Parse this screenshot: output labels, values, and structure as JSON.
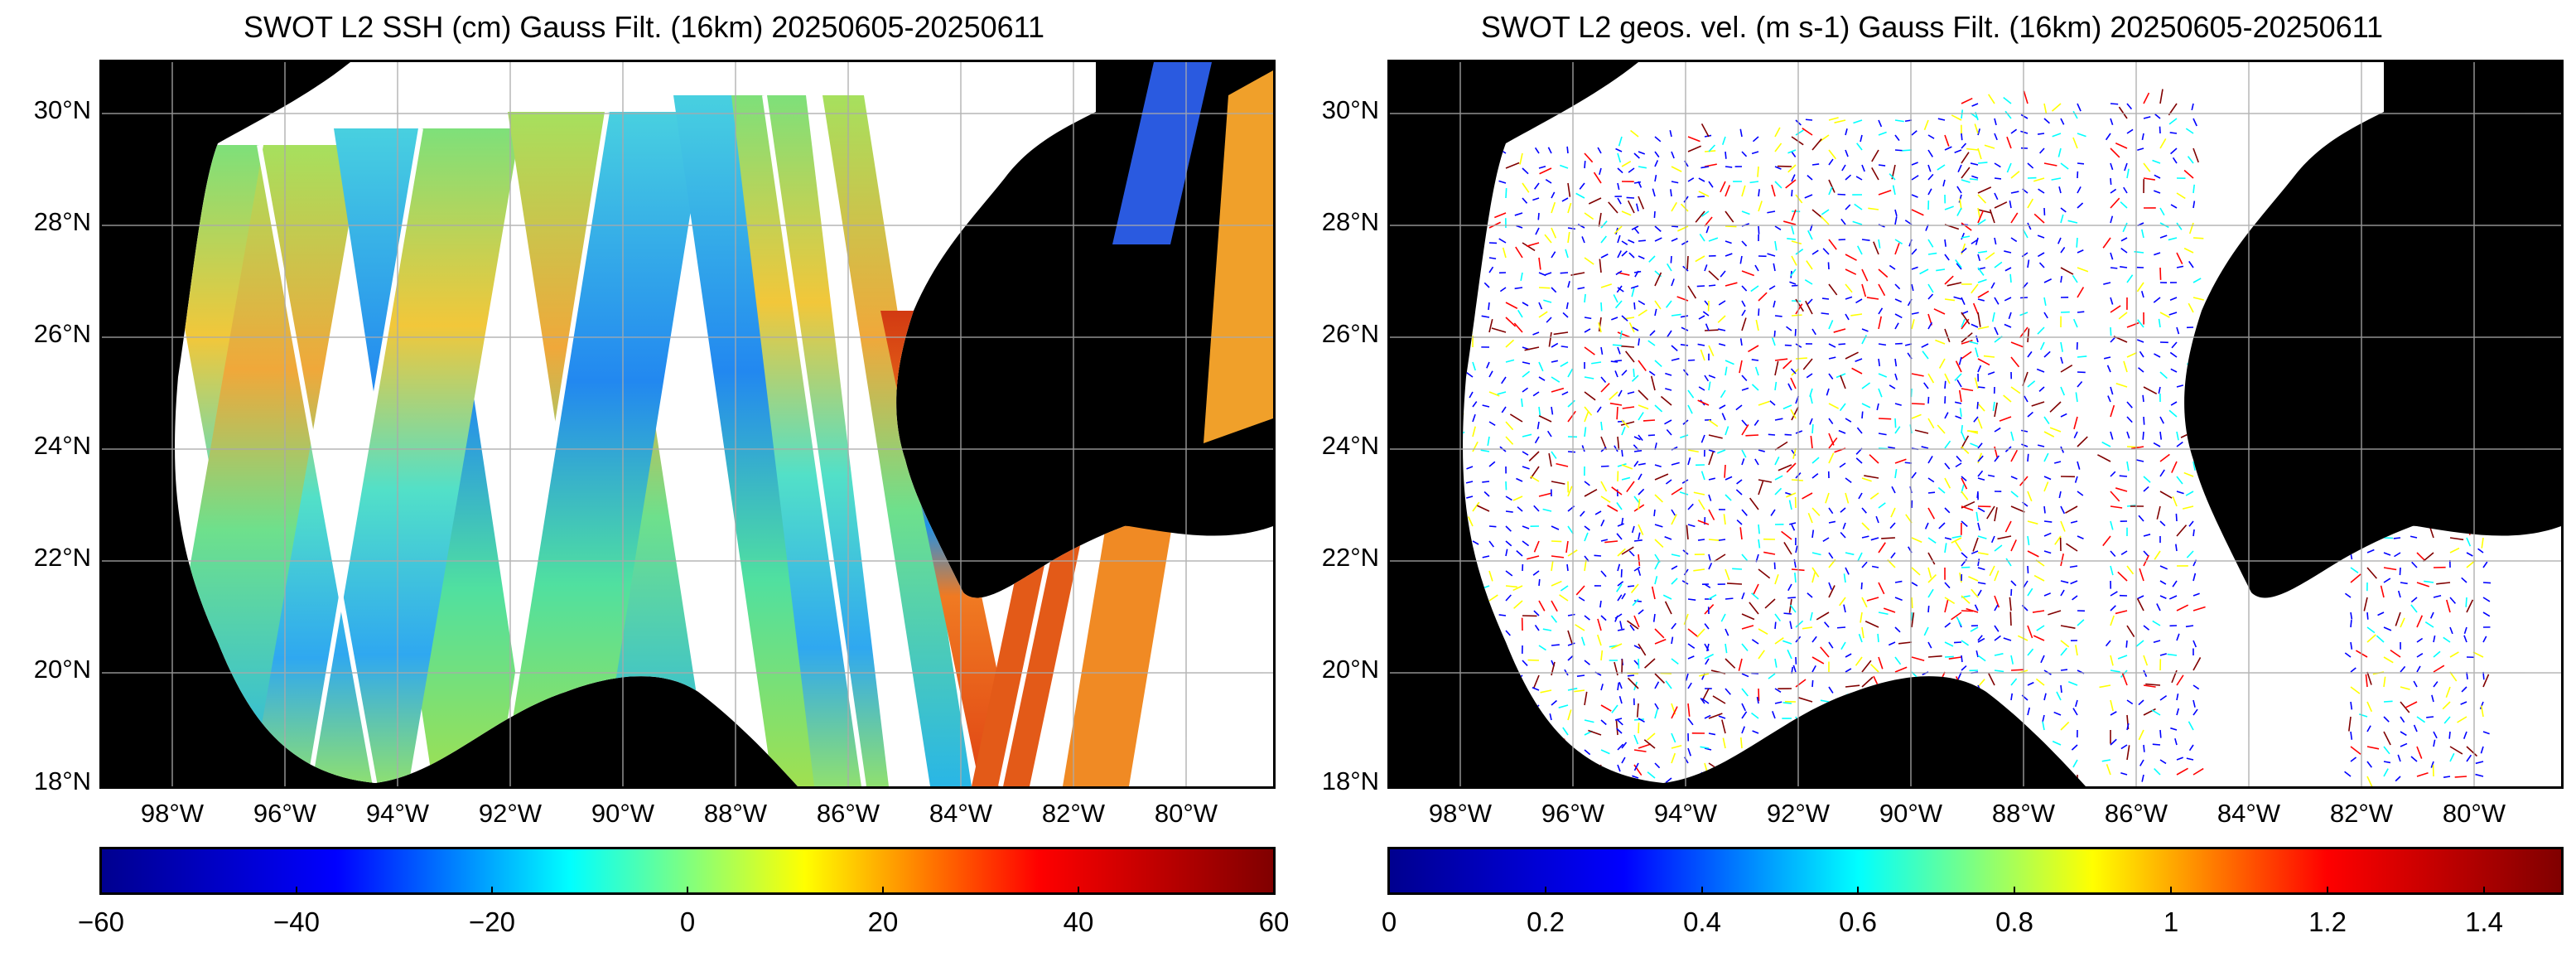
{
  "panels": [
    {
      "title": "SWOT L2 SSH (cm) Gauss Filt. (16km) 20250605-20250611",
      "variable": "ssh",
      "lat_labels": [
        "30°N",
        "28°N",
        "26°N",
        "24°N",
        "22°N",
        "20°N",
        "18°N"
      ],
      "lon_labels": [
        "98°W",
        "96°W",
        "94°W",
        "92°W",
        "90°W",
        "88°W",
        "86°W",
        "84°W",
        "82°W",
        "80°W"
      ],
      "colorbar": {
        "colormap": "jet",
        "min": -60,
        "max": 60,
        "ticks": [
          "−60",
          "−40",
          "−20",
          "0",
          "20",
          "40",
          "60"
        ]
      }
    },
    {
      "title": "SWOT L2 geos. vel. (m s-1) Gauss Filt. (16km) 20250605-20250611",
      "variable": "geostrophic_velocity",
      "lat_labels": [
        "30°N",
        "28°N",
        "26°N",
        "24°N",
        "22°N",
        "20°N",
        "18°N"
      ],
      "lon_labels": [
        "98°W",
        "96°W",
        "94°W",
        "92°W",
        "90°W",
        "88°W",
        "86°W",
        "84°W",
        "82°W",
        "80°W"
      ],
      "colorbar": {
        "colormap": "jet",
        "min": 0,
        "max": 1.5,
        "ticks": [
          "0",
          "0.2",
          "0.4",
          "0.6",
          "0.8",
          "1",
          "1.2",
          "1.4"
        ]
      }
    }
  ],
  "colors": {
    "land": "#000000",
    "ocean_no_data": "#ffffff",
    "grid": "#aaaaaa"
  }
}
